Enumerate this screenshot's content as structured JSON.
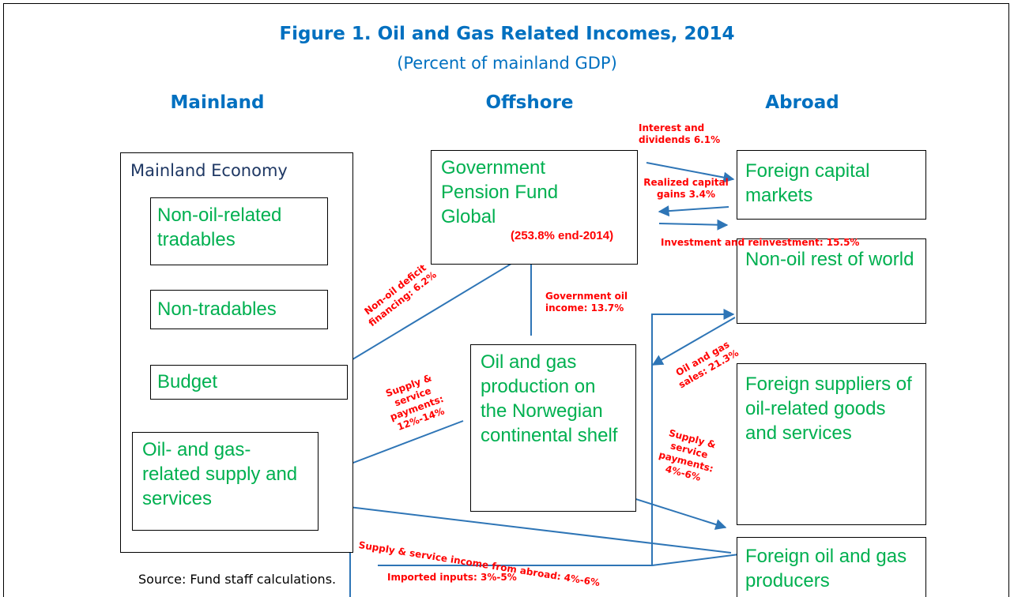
{
  "title": "Figure 1. Oil and Gas Related Incomes, 2014",
  "subtitle": "(Percent of mainland GDP)",
  "columns": [
    "Mainland",
    "Offshore",
    "Abroad"
  ],
  "mainland_economy": {
    "label": "Mainland Economy",
    "sectors": [
      "Non-oil-related tradables",
      "Non-tradables",
      "Budget",
      "Oil- and gas-related supply and services"
    ]
  },
  "pension_fund": {
    "label": "Government Pension Fund Global",
    "note": "(253.8% end-2014)"
  },
  "production": "Oil and gas production on the Norwegian continental shelf",
  "abroad_nodes": [
    "Foreign capital markets",
    "Non-oil rest of world",
    "Foreign suppliers of oil-related goods and services",
    "Foreign oil and gas producers"
  ],
  "flows": [
    "Interest and dividends 6.1%",
    "Realized capital gains 3.4%",
    "Investment and reinvestment:  15.5%",
    "Non-oil deficit financing:  6.2%",
    "Government oil income:  13.7%",
    "Oil and gas sales: 21.3%",
    "Supply & service payments: 12%-14%",
    "Supply & service payments: 4%-6%",
    "Supply & service income from abroad: 4%-6%",
    "Imported inputs:  3%-5%"
  ],
  "source": "Source: Fund staff calculations."
}
